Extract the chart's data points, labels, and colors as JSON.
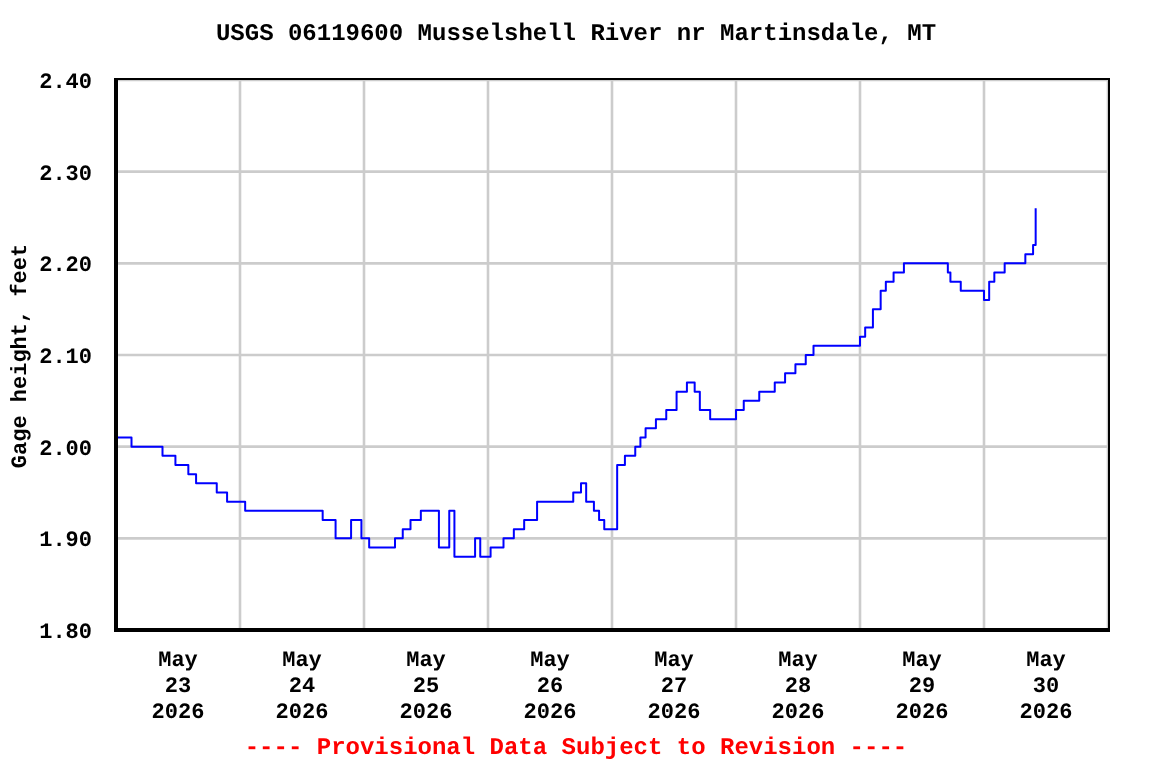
{
  "chart_data": {
    "type": "step",
    "title": "USGS 06119600 Musselshell River nr Martinsdale, MT",
    "ylabel": "Gage height, feet",
    "annotations": [
      "---- Provisional Data Subject to Revision ----"
    ],
    "x": [
      "2026-05-23T00:00",
      "2026-05-23T03:00",
      "2026-05-23T09:00",
      "2026-05-23T11:30",
      "2026-05-23T14:00",
      "2026-05-23T15:30",
      "2026-05-23T19:30",
      "2026-05-23T21:30",
      "2026-05-24T01:00",
      "2026-05-24T16:00",
      "2026-05-24T18:30",
      "2026-05-24T21:30",
      "2026-05-24T23:30",
      "2026-05-25T01:00",
      "2026-05-25T06:00",
      "2026-05-25T07:30",
      "2026-05-25T09:00",
      "2026-05-25T11:00",
      "2026-05-25T13:30",
      "2026-05-25T14:30",
      "2026-05-25T16:00",
      "2026-05-25T16:30",
      "2026-05-25T17:30",
      "2026-05-25T21:00",
      "2026-05-25T21:30",
      "2026-05-25T22:30",
      "2026-05-26T00:30",
      "2026-05-26T03:00",
      "2026-05-26T05:00",
      "2026-05-26T07:00",
      "2026-05-26T09:30",
      "2026-05-26T15:00",
      "2026-05-26T16:30",
      "2026-05-26T18:00",
      "2026-05-26T19:00",
      "2026-05-26T20:30",
      "2026-05-26T21:30",
      "2026-05-26T22:30",
      "2026-05-26T23:30",
      "2026-05-27T01:00",
      "2026-05-27T02:30",
      "2026-05-27T04:30",
      "2026-05-27T05:30",
      "2026-05-27T06:30",
      "2026-05-27T08:30",
      "2026-05-27T10:30",
      "2026-05-27T12:30",
      "2026-05-27T14:30",
      "2026-05-27T16:00",
      "2026-05-27T17:00",
      "2026-05-27T19:00",
      "2026-05-27T22:00",
      "2026-05-28T00:00",
      "2026-05-28T01:30",
      "2026-05-28T04:30",
      "2026-05-28T07:30",
      "2026-05-28T09:30",
      "2026-05-28T11:30",
      "2026-05-28T13:30",
      "2026-05-28T15:00",
      "2026-05-28T23:00",
      "2026-05-29T00:00",
      "2026-05-29T01:00",
      "2026-05-29T02:30",
      "2026-05-29T04:00",
      "2026-05-29T05:00",
      "2026-05-29T06:30",
      "2026-05-29T08:30",
      "2026-05-29T16:30",
      "2026-05-29T17:00",
      "2026-05-29T17:30",
      "2026-05-29T19:30",
      "2026-05-29T23:30",
      "2026-05-30T00:00",
      "2026-05-30T01:00",
      "2026-05-30T02:00",
      "2026-05-30T04:00",
      "2026-05-30T07:30",
      "2026-05-30T08:00",
      "2026-05-30T09:30",
      "2026-05-30T10:00"
    ],
    "series": [
      {
        "color": "#0000ff",
        "values": [
          2.01,
          2.0,
          1.99,
          1.98,
          1.97,
          1.96,
          1.95,
          1.94,
          1.93,
          1.92,
          1.9,
          1.92,
          1.9,
          1.89,
          1.9,
          1.91,
          1.92,
          1.93,
          1.93,
          1.89,
          1.89,
          1.93,
          1.88,
          1.88,
          1.9,
          1.88,
          1.89,
          1.9,
          1.91,
          1.92,
          1.94,
          1.94,
          1.95,
          1.96,
          1.94,
          1.93,
          1.92,
          1.91,
          1.91,
          1.98,
          1.99,
          2.0,
          2.01,
          2.02,
          2.03,
          2.04,
          2.06,
          2.07,
          2.06,
          2.04,
          2.03,
          2.03,
          2.04,
          2.05,
          2.06,
          2.07,
          2.08,
          2.09,
          2.1,
          2.11,
          2.11,
          2.12,
          2.13,
          2.15,
          2.17,
          2.18,
          2.19,
          2.2,
          2.2,
          2.19,
          2.18,
          2.17,
          2.17,
          2.16,
          2.18,
          2.19,
          2.2,
          2.2,
          2.21,
          2.22,
          2.26
        ]
      }
    ],
    "xlim": [
      "2026-05-23T00:00",
      "2026-05-31T00:00"
    ],
    "xticks": [
      {
        "value": "2026-05-23T00:00",
        "label": null
      },
      {
        "value": "2026-05-23T12:00",
        "label": "May\n23\n2026"
      },
      {
        "value": "2026-05-24T00:00",
        "label": null
      },
      {
        "value": "2026-05-24T12:00",
        "label": "May\n24\n2026"
      },
      {
        "value": "2026-05-25T00:00",
        "label": null
      },
      {
        "value": "2026-05-25T12:00",
        "label": "May\n25\n2026"
      },
      {
        "value": "2026-05-26T00:00",
        "label": null
      },
      {
        "value": "2026-05-26T12:00",
        "label": "May\n26\n2026"
      },
      {
        "value": "2026-05-27T00:00",
        "label": null
      },
      {
        "value": "2026-05-27T12:00",
        "label": "May\n27\n2026"
      },
      {
        "value": "2026-05-28T00:00",
        "label": null
      },
      {
        "value": "2026-05-28T12:00",
        "label": "May\n28\n2026"
      },
      {
        "value": "2026-05-29T00:00",
        "label": null
      },
      {
        "value": "2026-05-29T12:00",
        "label": "May\n29\n2026"
      },
      {
        "value": "2026-05-30T00:00",
        "label": null
      },
      {
        "value": "2026-05-30T12:00",
        "label": "May\n30\n2026"
      },
      {
        "value": "2026-05-31T00:00",
        "label": null
      }
    ],
    "ylim": [
      1.8,
      2.4
    ],
    "yticks": [
      {
        "value": 1.8,
        "label": "1.80"
      },
      {
        "value": 1.9,
        "label": "1.90"
      },
      {
        "value": 2.0,
        "label": "2.00"
      },
      {
        "value": 2.1,
        "label": "2.10"
      },
      {
        "value": 2.2,
        "label": "2.20"
      },
      {
        "value": 2.3,
        "label": "2.30"
      },
      {
        "value": 2.4,
        "label": "2.40"
      }
    ],
    "grid": true,
    "marker": "none",
    "line_style": "solid"
  }
}
